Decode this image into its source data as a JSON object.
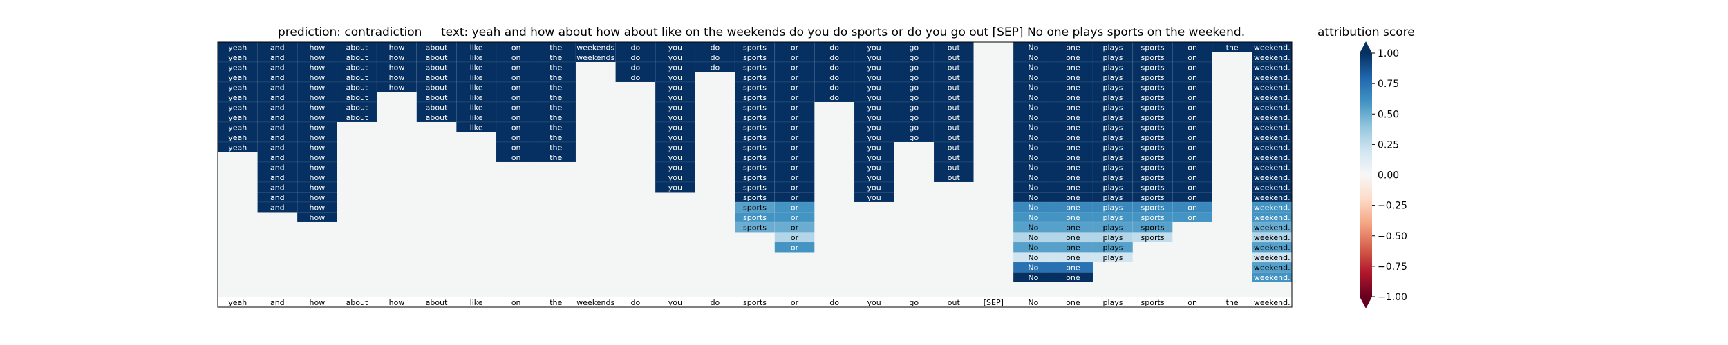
{
  "chart_data": {
    "type": "heatmap",
    "title_prediction": "prediction:  contradiction",
    "title_text": "text:  yeah and how about how about like on the weekends do you do sports or do you go out [SEP] No one plays sports on the weekend.",
    "colorbar_label": "attribution score",
    "colorbar_ticks": [
      "1.00",
      "0.75",
      "0.50",
      "0.25",
      "0.00",
      "−0.25",
      "−0.50",
      "−0.75",
      "−1.00"
    ],
    "colorbar_range": [
      -1,
      1
    ],
    "grid_rows": 25,
    "tokens": [
      "yeah",
      "and",
      "how",
      "about",
      "how",
      "about",
      "like",
      "on",
      "the",
      "weekends",
      "do",
      "you",
      "do",
      "sports",
      "or",
      "do",
      "you",
      "go",
      "out",
      "[SEP]",
      "No",
      "one",
      "plays",
      "sports",
      "on",
      "the",
      "weekend."
    ],
    "column_rows": [
      [
        1,
        1,
        1,
        1,
        1,
        1,
        1,
        1,
        1,
        1,
        1
      ],
      [
        1,
        1,
        1,
        1,
        1,
        1,
        1,
        1,
        1,
        1,
        1,
        1,
        1,
        1,
        1,
        1,
        1
      ],
      [
        1,
        1,
        1,
        1,
        1,
        1,
        1,
        1,
        1,
        1,
        1,
        1,
        1,
        1,
        1,
        1,
        1,
        1
      ],
      [
        1,
        1,
        1,
        1,
        1,
        1,
        1,
        1
      ],
      [
        1,
        1,
        1,
        1,
        1
      ],
      [
        1,
        1,
        1,
        1,
        1,
        1,
        1,
        1
      ],
      [
        1,
        1,
        1,
        1,
        1,
        1,
        1,
        1,
        1
      ],
      [
        1,
        1,
        1,
        1,
        1,
        1,
        1,
        1,
        1,
        1,
        1,
        1
      ],
      [
        1,
        1,
        1,
        1,
        1,
        1,
        1,
        1,
        1,
        1,
        1,
        1
      ],
      [
        1,
        1
      ],
      [
        1,
        1,
        1,
        1
      ],
      [
        1,
        1,
        1,
        1,
        1,
        1,
        1,
        1,
        1,
        1,
        1,
        1,
        1,
        1,
        1
      ],
      [
        1,
        1,
        1
      ],
      [
        1,
        1,
        1,
        1,
        1,
        1,
        1,
        1,
        1,
        1,
        1,
        1,
        1,
        1,
        1,
        1,
        0.55,
        0.6,
        0.5
      ],
      [
        1,
        1,
        1,
        1,
        1,
        1,
        1,
        1,
        1,
        1,
        1,
        1,
        1,
        1,
        1,
        1,
        0.6,
        0.6,
        0.5,
        0.3,
        0.6
      ],
      [
        1,
        1,
        1,
        1,
        1,
        1
      ],
      [
        1,
        1,
        1,
        1,
        1,
        1,
        1,
        1,
        1,
        1,
        1,
        1,
        1,
        1,
        1,
        1
      ],
      [
        1,
        1,
        1,
        1,
        1,
        1,
        1,
        1,
        1,
        1
      ],
      [
        1,
        1,
        1,
        1,
        1,
        1,
        1,
        1,
        1,
        1,
        1,
        1,
        1,
        1
      ],
      [],
      [
        1,
        1,
        1,
        1,
        1,
        1,
        1,
        1,
        1,
        1,
        1,
        1,
        1,
        1,
        1,
        1,
        0.65,
        0.6,
        0.55,
        0.3,
        0.55,
        0.2,
        0.75,
        1
      ],
      [
        1,
        1,
        1,
        1,
        1,
        1,
        1,
        1,
        1,
        1,
        1,
        1,
        1,
        1,
        1,
        1,
        0.65,
        0.6,
        0.55,
        0.3,
        0.55,
        0.2,
        0.75,
        1
      ],
      [
        1,
        1,
        1,
        1,
        1,
        1,
        1,
        1,
        1,
        1,
        1,
        1,
        1,
        1,
        1,
        1,
        0.65,
        0.6,
        0.55,
        0.3,
        0.55,
        0.2
      ],
      [
        1,
        1,
        1,
        1,
        1,
        1,
        1,
        1,
        1,
        1,
        1,
        1,
        1,
        1,
        1,
        1,
        0.65,
        0.6,
        0.55,
        0.25
      ],
      [
        1,
        1,
        1,
        1,
        1,
        1,
        1,
        1,
        1,
        1,
        1,
        1,
        1,
        1,
        1,
        1,
        0.65,
        0.6
      ],
      [
        1
      ],
      [
        1,
        1,
        1,
        1,
        1,
        1,
        1,
        1,
        1,
        1,
        1,
        1,
        1,
        1,
        1,
        1,
        0.6,
        0.6,
        0.5,
        0.3,
        0.55,
        0.2,
        0.55,
        0.6
      ]
    ]
  }
}
